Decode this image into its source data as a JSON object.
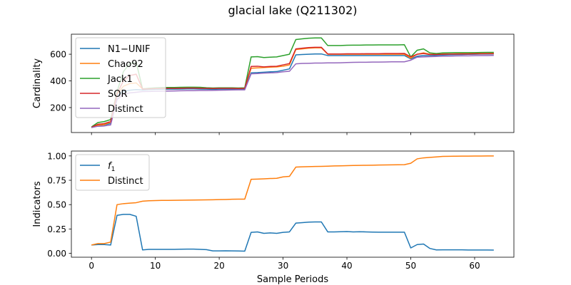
{
  "figure": {
    "title": "glacial lake (Q211302)",
    "xlabel": "Sample Periods"
  },
  "chart_data": [
    {
      "type": "line",
      "panel": "top",
      "title": "",
      "xlabel": "",
      "ylabel": "Cardinality",
      "xlim": [
        -3.15,
        66.15
      ],
      "ylim": [
        13,
        750
      ],
      "xticks": [
        0,
        10,
        20,
        30,
        40,
        50,
        60
      ],
      "show_xtick_labels": false,
      "yticks": [
        200,
        400,
        600
      ],
      "legend": "top-left",
      "grid": false,
      "x": [
        0,
        1,
        2,
        3,
        4,
        5,
        6,
        7,
        8,
        9,
        10,
        11,
        12,
        13,
        14,
        15,
        16,
        17,
        18,
        19,
        20,
        21,
        22,
        23,
        24,
        25,
        26,
        27,
        28,
        29,
        30,
        31,
        32,
        33,
        34,
        35,
        36,
        37,
        38,
        39,
        40,
        41,
        42,
        43,
        44,
        45,
        46,
        47,
        48,
        49,
        50,
        51,
        52,
        53,
        54,
        55,
        56,
        57,
        58,
        59,
        60,
        61,
        62,
        63
      ],
      "series": [
        {
          "name": "N1−UNIF",
          "color": "#1f77b4",
          "values": [
            50,
            65,
            70,
            80,
            290,
            320,
            330,
            335,
            332,
            335,
            336,
            337,
            338,
            338,
            339,
            340,
            340,
            339,
            338,
            337,
            338,
            338,
            338,
            337,
            338,
            460,
            462,
            465,
            468,
            470,
            480,
            490,
            595,
            598,
            600,
            602,
            602,
            590,
            590,
            590,
            590,
            590,
            590,
            590,
            590,
            590,
            590,
            590,
            590,
            590,
            565,
            585,
            590,
            590,
            592,
            594,
            596,
            597,
            598,
            599,
            600,
            601,
            601,
            602
          ]
        },
        {
          "name": "Chao92",
          "color": "#ff7f0e",
          "values": [
            50,
            68,
            72,
            90,
            300,
            360,
            380,
            385,
            340,
            342,
            344,
            345,
            346,
            346,
            347,
            348,
            348,
            347,
            346,
            345,
            346,
            346,
            346,
            345,
            346,
            495,
            498,
            500,
            503,
            505,
            510,
            520,
            635,
            640,
            645,
            648,
            648,
            600,
            600,
            600,
            600,
            600,
            600,
            600,
            600,
            600,
            600,
            600,
            600,
            600,
            570,
            600,
            610,
            600,
            600,
            601,
            602,
            603,
            604,
            604,
            605,
            606,
            606,
            607
          ]
        },
        {
          "name": "Jack1",
          "color": "#2ca02c",
          "values": [
            55,
            88,
            95,
            110,
            320,
            470,
            530,
            540,
            340,
            345,
            348,
            350,
            351,
            351,
            352,
            353,
            353,
            352,
            349,
            347,
            348,
            348,
            348,
            347,
            348,
            580,
            582,
            575,
            578,
            580,
            590,
            600,
            710,
            715,
            720,
            722,
            722,
            665,
            665,
            665,
            667,
            668,
            668,
            669,
            669,
            670,
            670,
            670,
            670,
            671,
            580,
            630,
            640,
            610,
            605,
            610,
            611,
            612,
            612,
            612,
            612,
            613,
            614,
            614
          ]
        },
        {
          "name": "SOR",
          "color": "#d62728",
          "values": [
            52,
            75,
            80,
            95,
            305,
            400,
            440,
            450,
            338,
            340,
            342,
            343,
            344,
            344,
            345,
            346,
            346,
            345,
            344,
            343,
            344,
            344,
            344,
            343,
            344,
            508,
            510,
            505,
            508,
            510,
            520,
            530,
            640,
            645,
            650,
            652,
            652,
            602,
            602,
            602,
            603,
            603,
            603,
            604,
            604,
            604,
            605,
            605,
            605,
            606,
            580,
            600,
            605,
            598,
            598,
            600,
            601,
            601,
            602,
            602,
            603,
            603,
            604,
            604
          ]
        },
        {
          "name": "Distinct",
          "color": "#9467bd",
          "values": [
            50,
            60,
            62,
            70,
            260,
            300,
            310,
            315,
            320,
            321,
            322,
            323,
            324,
            325,
            326,
            327,
            327,
            328,
            328,
            329,
            330,
            331,
            332,
            333,
            333,
            453,
            455,
            458,
            460,
            462,
            468,
            472,
            528,
            531,
            532,
            534,
            534,
            535,
            535,
            536,
            538,
            539,
            540,
            540,
            541,
            541,
            542,
            543,
            543,
            543,
            555,
            578,
            580,
            582,
            583,
            585,
            586,
            587,
            588,
            588,
            589,
            590,
            590,
            591
          ]
        }
      ]
    },
    {
      "type": "line",
      "panel": "bottom",
      "title": "",
      "xlabel": "Sample Periods",
      "ylabel": "Indicators",
      "xlim": [
        -3.15,
        66.15
      ],
      "ylim": [
        -0.04,
        1.05
      ],
      "xticks": [
        0,
        10,
        20,
        30,
        40,
        50,
        60
      ],
      "show_xtick_labels": true,
      "yticks": [
        0.0,
        0.25,
        0.5,
        0.75,
        1.0
      ],
      "ytick_labels": [
        "0.00",
        "0.25",
        "0.50",
        "0.75",
        "1.00"
      ],
      "legend": "top-left",
      "grid": false,
      "x": [
        0,
        1,
        2,
        3,
        4,
        5,
        6,
        7,
        8,
        9,
        10,
        11,
        12,
        13,
        14,
        15,
        16,
        17,
        18,
        19,
        20,
        21,
        22,
        23,
        24,
        25,
        26,
        27,
        28,
        29,
        30,
        31,
        32,
        33,
        34,
        35,
        36,
        37,
        38,
        39,
        40,
        41,
        42,
        43,
        44,
        45,
        46,
        47,
        48,
        49,
        50,
        51,
        52,
        53,
        54,
        55,
        56,
        57,
        58,
        59,
        60,
        61,
        62,
        63
      ],
      "series": [
        {
          "name": "f",
          "name_subscript": "1",
          "color": "#1f77b4",
          "values": [
            0.085,
            0.09,
            0.09,
            0.085,
            0.39,
            0.4,
            0.4,
            0.38,
            0.035,
            0.04,
            0.04,
            0.04,
            0.04,
            0.04,
            0.042,
            0.043,
            0.043,
            0.04,
            0.038,
            0.025,
            0.025,
            0.026,
            0.025,
            0.024,
            0.022,
            0.215,
            0.22,
            0.205,
            0.21,
            0.205,
            0.215,
            0.22,
            0.31,
            0.315,
            0.32,
            0.322,
            0.322,
            0.22,
            0.22,
            0.222,
            0.223,
            0.22,
            0.222,
            0.22,
            0.218,
            0.217,
            0.217,
            0.217,
            0.217,
            0.217,
            0.055,
            0.09,
            0.095,
            0.05,
            0.035,
            0.036,
            0.036,
            0.036,
            0.036,
            0.034,
            0.034,
            0.034,
            0.034,
            0.033
          ]
        },
        {
          "name": "Distinct",
          "color": "#ff7f0e",
          "values": [
            0.085,
            0.1,
            0.1,
            0.115,
            0.5,
            0.51,
            0.515,
            0.52,
            0.535,
            0.54,
            0.542,
            0.543,
            0.543,
            0.544,
            0.545,
            0.546,
            0.547,
            0.548,
            0.549,
            0.55,
            0.552,
            0.553,
            0.555,
            0.556,
            0.556,
            0.76,
            0.762,
            0.765,
            0.768,
            0.77,
            0.785,
            0.79,
            0.885,
            0.888,
            0.89,
            0.892,
            0.893,
            0.895,
            0.897,
            0.898,
            0.9,
            0.902,
            0.903,
            0.904,
            0.905,
            0.906,
            0.907,
            0.908,
            0.909,
            0.91,
            0.925,
            0.97,
            0.98,
            0.985,
            0.99,
            0.995,
            0.996,
            0.997,
            0.998,
            0.998,
            0.999,
            0.999,
            1.0,
            1.0
          ]
        }
      ]
    }
  ]
}
